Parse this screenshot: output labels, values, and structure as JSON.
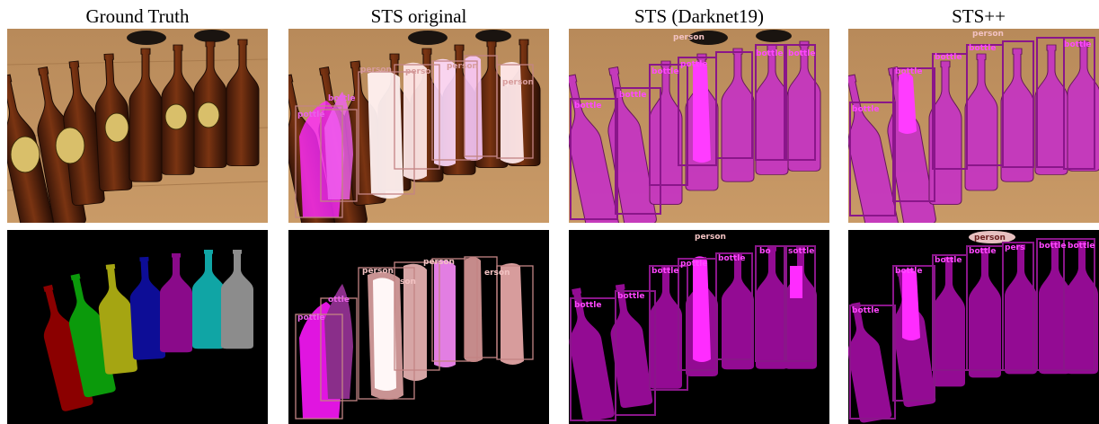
{
  "columns": [
    {
      "title": "Ground Truth"
    },
    {
      "title": "STS original"
    },
    {
      "title": "STS (Darknet19)"
    },
    {
      "title": "STS++"
    }
  ],
  "labels": {
    "bottle": "bottle",
    "person": "person",
    "ottle": "ottle",
    "pottle": "pottle",
    "perso": "perso",
    "son": "son",
    "ers_on": "erson",
    "bo": "bo",
    "sottle": "sottle",
    "pers": "pers"
  },
  "colors": {
    "gt_instances": [
      "#8b0000",
      "#0b9a0b",
      "#a5a512",
      "#0d0d96",
      "#8a0a8a",
      "#10a5a5",
      "#8c8c8c"
    ],
    "magenta": "#ff1dff",
    "purple_box": "#8a168a",
    "pink_box": "#c38484",
    "white_mask": "#ffe8ea",
    "salmon_mask": "#e8a592",
    "person_label": "#f2c2c2"
  }
}
